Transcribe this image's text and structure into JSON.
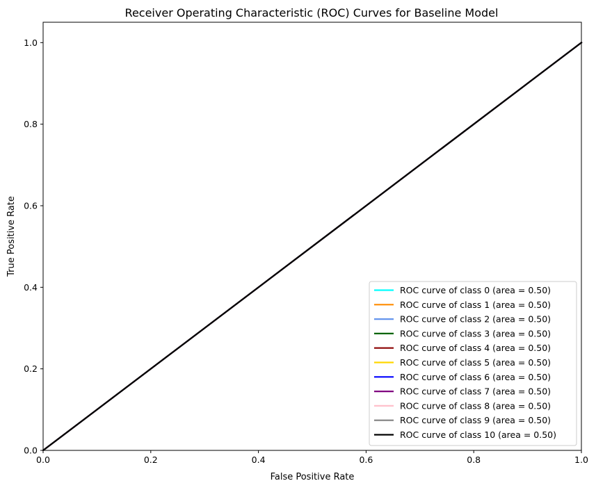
{
  "chart_data": {
    "type": "line",
    "title": "Receiver Operating Characteristic (ROC) Curves for Baseline Model",
    "xlabel": "False Positive Rate",
    "ylabel": "True Positive Rate",
    "xlim": [
      0.0,
      1.0
    ],
    "ylim": [
      0.0,
      1.05
    ],
    "xticks": [
      "0.0",
      "0.2",
      "0.4",
      "0.6",
      "0.8",
      "1.0"
    ],
    "yticks": [
      "0.0",
      "0.2",
      "0.4",
      "0.6",
      "0.8",
      "1.0"
    ],
    "grid": false,
    "legend_position": "lower right",
    "series": [
      {
        "name": "ROC curve of class 0 (area = 0.50)",
        "color": "#00ffff",
        "x": [
          0,
          1
        ],
        "y": [
          0,
          1
        ]
      },
      {
        "name": "ROC curve of class 1 (area = 0.50)",
        "color": "#ff8c00",
        "x": [
          0,
          1
        ],
        "y": [
          0,
          1
        ]
      },
      {
        "name": "ROC curve of class 2 (area = 0.50)",
        "color": "#6495ed",
        "x": [
          0,
          1
        ],
        "y": [
          0,
          1
        ]
      },
      {
        "name": "ROC curve of class 3 (area = 0.50)",
        "color": "#006400",
        "x": [
          0,
          1
        ],
        "y": [
          0,
          1
        ]
      },
      {
        "name": "ROC curve of class 4 (area = 0.50)",
        "color": "#8b0000",
        "x": [
          0,
          1
        ],
        "y": [
          0,
          1
        ]
      },
      {
        "name": "ROC curve of class 5 (area = 0.50)",
        "color": "#ffd700",
        "x": [
          0,
          1
        ],
        "y": [
          0,
          1
        ]
      },
      {
        "name": "ROC curve of class 6 (area = 0.50)",
        "color": "#0000ff",
        "x": [
          0,
          1
        ],
        "y": [
          0,
          1
        ]
      },
      {
        "name": "ROC curve of class 7 (area = 0.50)",
        "color": "#800080",
        "x": [
          0,
          1
        ],
        "y": [
          0,
          1
        ]
      },
      {
        "name": "ROC curve of class 8 (area = 0.50)",
        "color": "#ffc0cb",
        "x": [
          0,
          1
        ],
        "y": [
          0,
          1
        ]
      },
      {
        "name": "ROC curve of class 9 (area = 0.50)",
        "color": "#808080",
        "x": [
          0,
          1
        ],
        "y": [
          0,
          1
        ]
      },
      {
        "name": "ROC curve of class 10 (area = 0.50)",
        "color": "#000000",
        "x": [
          0,
          1
        ],
        "y": [
          0,
          1
        ]
      }
    ]
  }
}
